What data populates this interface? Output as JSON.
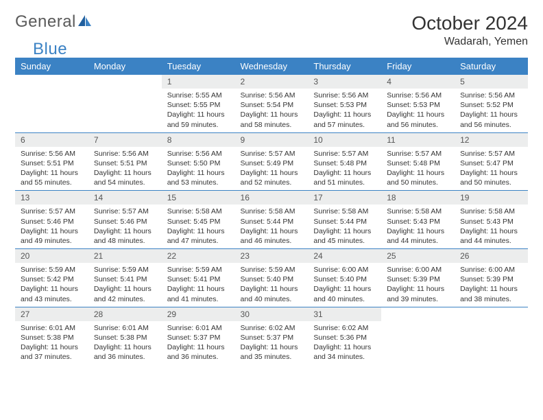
{
  "brand": {
    "part1": "General",
    "part2": "Blue"
  },
  "title": "October 2024",
  "location": "Wadarah, Yemen",
  "colors": {
    "header_bg": "#3b82c4",
    "header_text": "#ffffff",
    "daynum_bg": "#eceded",
    "border": "#3b82c4",
    "text": "#333333",
    "logo_gray": "#5a5a5a",
    "logo_blue": "#3b82c4"
  },
  "weekdays": [
    "Sunday",
    "Monday",
    "Tuesday",
    "Wednesday",
    "Thursday",
    "Friday",
    "Saturday"
  ],
  "weeks": [
    [
      {
        "empty": true
      },
      {
        "empty": true
      },
      {
        "n": "1",
        "sr": "Sunrise: 5:55 AM",
        "ss": "Sunset: 5:55 PM",
        "dl": "Daylight: 11 hours and 59 minutes."
      },
      {
        "n": "2",
        "sr": "Sunrise: 5:56 AM",
        "ss": "Sunset: 5:54 PM",
        "dl": "Daylight: 11 hours and 58 minutes."
      },
      {
        "n": "3",
        "sr": "Sunrise: 5:56 AM",
        "ss": "Sunset: 5:53 PM",
        "dl": "Daylight: 11 hours and 57 minutes."
      },
      {
        "n": "4",
        "sr": "Sunrise: 5:56 AM",
        "ss": "Sunset: 5:53 PM",
        "dl": "Daylight: 11 hours and 56 minutes."
      },
      {
        "n": "5",
        "sr": "Sunrise: 5:56 AM",
        "ss": "Sunset: 5:52 PM",
        "dl": "Daylight: 11 hours and 56 minutes."
      }
    ],
    [
      {
        "n": "6",
        "sr": "Sunrise: 5:56 AM",
        "ss": "Sunset: 5:51 PM",
        "dl": "Daylight: 11 hours and 55 minutes."
      },
      {
        "n": "7",
        "sr": "Sunrise: 5:56 AM",
        "ss": "Sunset: 5:51 PM",
        "dl": "Daylight: 11 hours and 54 minutes."
      },
      {
        "n": "8",
        "sr": "Sunrise: 5:56 AM",
        "ss": "Sunset: 5:50 PM",
        "dl": "Daylight: 11 hours and 53 minutes."
      },
      {
        "n": "9",
        "sr": "Sunrise: 5:57 AM",
        "ss": "Sunset: 5:49 PM",
        "dl": "Daylight: 11 hours and 52 minutes."
      },
      {
        "n": "10",
        "sr": "Sunrise: 5:57 AM",
        "ss": "Sunset: 5:48 PM",
        "dl": "Daylight: 11 hours and 51 minutes."
      },
      {
        "n": "11",
        "sr": "Sunrise: 5:57 AM",
        "ss": "Sunset: 5:48 PM",
        "dl": "Daylight: 11 hours and 50 minutes."
      },
      {
        "n": "12",
        "sr": "Sunrise: 5:57 AM",
        "ss": "Sunset: 5:47 PM",
        "dl": "Daylight: 11 hours and 50 minutes."
      }
    ],
    [
      {
        "n": "13",
        "sr": "Sunrise: 5:57 AM",
        "ss": "Sunset: 5:46 PM",
        "dl": "Daylight: 11 hours and 49 minutes."
      },
      {
        "n": "14",
        "sr": "Sunrise: 5:57 AM",
        "ss": "Sunset: 5:46 PM",
        "dl": "Daylight: 11 hours and 48 minutes."
      },
      {
        "n": "15",
        "sr": "Sunrise: 5:58 AM",
        "ss": "Sunset: 5:45 PM",
        "dl": "Daylight: 11 hours and 47 minutes."
      },
      {
        "n": "16",
        "sr": "Sunrise: 5:58 AM",
        "ss": "Sunset: 5:44 PM",
        "dl": "Daylight: 11 hours and 46 minutes."
      },
      {
        "n": "17",
        "sr": "Sunrise: 5:58 AM",
        "ss": "Sunset: 5:44 PM",
        "dl": "Daylight: 11 hours and 45 minutes."
      },
      {
        "n": "18",
        "sr": "Sunrise: 5:58 AM",
        "ss": "Sunset: 5:43 PM",
        "dl": "Daylight: 11 hours and 44 minutes."
      },
      {
        "n": "19",
        "sr": "Sunrise: 5:58 AM",
        "ss": "Sunset: 5:43 PM",
        "dl": "Daylight: 11 hours and 44 minutes."
      }
    ],
    [
      {
        "n": "20",
        "sr": "Sunrise: 5:59 AM",
        "ss": "Sunset: 5:42 PM",
        "dl": "Daylight: 11 hours and 43 minutes."
      },
      {
        "n": "21",
        "sr": "Sunrise: 5:59 AM",
        "ss": "Sunset: 5:41 PM",
        "dl": "Daylight: 11 hours and 42 minutes."
      },
      {
        "n": "22",
        "sr": "Sunrise: 5:59 AM",
        "ss": "Sunset: 5:41 PM",
        "dl": "Daylight: 11 hours and 41 minutes."
      },
      {
        "n": "23",
        "sr": "Sunrise: 5:59 AM",
        "ss": "Sunset: 5:40 PM",
        "dl": "Daylight: 11 hours and 40 minutes."
      },
      {
        "n": "24",
        "sr": "Sunrise: 6:00 AM",
        "ss": "Sunset: 5:40 PM",
        "dl": "Daylight: 11 hours and 40 minutes."
      },
      {
        "n": "25",
        "sr": "Sunrise: 6:00 AM",
        "ss": "Sunset: 5:39 PM",
        "dl": "Daylight: 11 hours and 39 minutes."
      },
      {
        "n": "26",
        "sr": "Sunrise: 6:00 AM",
        "ss": "Sunset: 5:39 PM",
        "dl": "Daylight: 11 hours and 38 minutes."
      }
    ],
    [
      {
        "n": "27",
        "sr": "Sunrise: 6:01 AM",
        "ss": "Sunset: 5:38 PM",
        "dl": "Daylight: 11 hours and 37 minutes."
      },
      {
        "n": "28",
        "sr": "Sunrise: 6:01 AM",
        "ss": "Sunset: 5:38 PM",
        "dl": "Daylight: 11 hours and 36 minutes."
      },
      {
        "n": "29",
        "sr": "Sunrise: 6:01 AM",
        "ss": "Sunset: 5:37 PM",
        "dl": "Daylight: 11 hours and 36 minutes."
      },
      {
        "n": "30",
        "sr": "Sunrise: 6:02 AM",
        "ss": "Sunset: 5:37 PM",
        "dl": "Daylight: 11 hours and 35 minutes."
      },
      {
        "n": "31",
        "sr": "Sunrise: 6:02 AM",
        "ss": "Sunset: 5:36 PM",
        "dl": "Daylight: 11 hours and 34 minutes."
      },
      {
        "empty": true
      },
      {
        "empty": true
      }
    ]
  ]
}
